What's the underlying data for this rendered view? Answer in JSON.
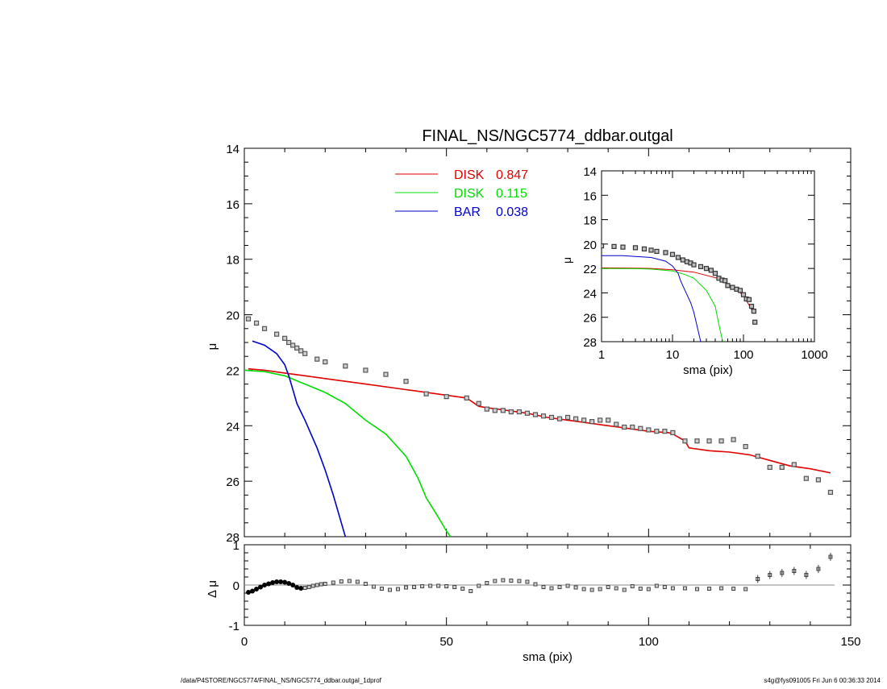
{
  "chart_data": [
    {
      "type": "line",
      "title": "FINAL_NS/NGC5774_ddbar.outgal",
      "xlabel": "",
      "ylabel": "μ",
      "xlim": [
        0,
        150
      ],
      "ylim": [
        28,
        14
      ],
      "y_inverted": true,
      "yticks": [
        "14",
        "16",
        "18",
        "20",
        "22",
        "24",
        "26",
        "28"
      ],
      "legend_placement": "top-center",
      "legend": [
        {
          "name": "DISK",
          "value": "0.847",
          "color": "#e00000"
        },
        {
          "name": "DISK",
          "value": "0.115",
          "color": "#00dd00"
        },
        {
          "name": "BAR",
          "value": "0.038",
          "color": "#0000cc"
        }
      ],
      "series": [
        {
          "name": "DISK",
          "color": "#e00000",
          "x": [
            1,
            5,
            10,
            15,
            20,
            30,
            40,
            50,
            55,
            58,
            60,
            65,
            70,
            75,
            80,
            85,
            90,
            95,
            100,
            105,
            106,
            109,
            110,
            115,
            120,
            125,
            130,
            135,
            140,
            145
          ],
          "y": [
            21.95,
            22.0,
            22.1,
            22.2,
            22.3,
            22.5,
            22.7,
            22.9,
            23.0,
            23.3,
            23.35,
            23.45,
            23.55,
            23.7,
            23.8,
            23.9,
            24.0,
            24.1,
            24.2,
            24.25,
            24.3,
            24.55,
            24.8,
            24.9,
            24.95,
            25.05,
            25.25,
            25.45,
            25.55,
            25.7
          ]
        },
        {
          "name": "DISK",
          "color": "#00dd00",
          "x": [
            0,
            5,
            10,
            15,
            20,
            25,
            30,
            35,
            40,
            43,
            45,
            48,
            50,
            51
          ],
          "y": [
            22.0,
            22.05,
            22.2,
            22.5,
            22.8,
            23.2,
            23.8,
            24.3,
            25.1,
            25.9,
            26.6,
            27.3,
            27.8,
            28.0
          ]
        },
        {
          "name": "BAR",
          "color": "#0000cc",
          "x": [
            2,
            5,
            8,
            10,
            11,
            12,
            13,
            14,
            15,
            18,
            20,
            22,
            24,
            25
          ],
          "y": [
            20.95,
            21.1,
            21.4,
            21.8,
            22.2,
            22.7,
            23.2,
            23.5,
            23.8,
            24.8,
            25.6,
            26.5,
            27.5,
            28.0
          ]
        },
        {
          "name": "",
          "color": "#555555",
          "marker": "square",
          "x": [
            1,
            3,
            5,
            8,
            10,
            11,
            12,
            13,
            14,
            15,
            18,
            20,
            25,
            30,
            35,
            40,
            45,
            50,
            55,
            58,
            60,
            62,
            64,
            66,
            68,
            70,
            72,
            74,
            76,
            78,
            80,
            82,
            84,
            86,
            88,
            90,
            92,
            94,
            96,
            98,
            100,
            102,
            104,
            106,
            109,
            112,
            115,
            118,
            121,
            124,
            127,
            130,
            133,
            136,
            139,
            142,
            145
          ],
          "y": [
            20.15,
            20.3,
            20.5,
            20.7,
            20.85,
            21.0,
            21.1,
            21.2,
            21.3,
            21.4,
            21.6,
            21.7,
            21.85,
            22.0,
            22.15,
            22.4,
            22.85,
            22.95,
            23.0,
            23.2,
            23.4,
            23.45,
            23.45,
            23.5,
            23.5,
            23.55,
            23.6,
            23.65,
            23.7,
            23.75,
            23.7,
            23.75,
            23.8,
            23.85,
            23.8,
            23.8,
            23.95,
            24.05,
            24.05,
            24.1,
            24.15,
            24.2,
            24.2,
            24.25,
            24.55,
            24.55,
            24.55,
            24.55,
            24.5,
            24.75,
            25.1,
            25.5,
            25.5,
            25.4,
            25.9,
            25.95,
            26.4
          ]
        }
      ]
    },
    {
      "type": "scatter",
      "xlabel": "sma (pix)",
      "ylabel": "Δ μ",
      "xlim": [
        0,
        150
      ],
      "ylim": [
        -1,
        1
      ],
      "xticks": [
        "0",
        "50",
        "100",
        "150"
      ],
      "yticks": [
        "1",
        "0",
        "-1"
      ],
      "series": [
        {
          "name": "",
          "color": "#000000",
          "x": [
            1,
            2,
            3,
            4,
            5,
            6,
            7,
            8,
            9,
            10,
            11,
            12,
            13,
            14,
            15,
            16,
            17,
            18,
            19,
            20,
            22,
            24,
            26,
            28,
            30,
            32,
            34,
            36,
            38,
            40,
            42,
            44,
            46,
            48,
            50,
            52,
            54,
            56,
            58,
            60,
            62,
            64,
            66,
            68,
            70,
            72,
            74,
            76,
            78,
            80,
            82,
            84,
            86,
            88,
            90,
            92,
            94,
            96,
            98,
            100,
            102,
            104,
            106,
            109,
            112,
            115,
            118,
            121,
            124,
            127,
            130,
            133,
            136,
            139,
            142,
            145
          ],
          "y": [
            -0.18,
            -0.15,
            -0.1,
            -0.05,
            0.0,
            0.03,
            0.06,
            0.08,
            0.08,
            0.07,
            0.04,
            0.0,
            -0.06,
            -0.08,
            -0.07,
            -0.05,
            -0.02,
            0.0,
            0.02,
            0.03,
            0.06,
            0.09,
            0.1,
            0.08,
            0.03,
            -0.04,
            -0.09,
            -0.12,
            -0.1,
            -0.06,
            -0.05,
            -0.03,
            -0.02,
            -0.02,
            -0.03,
            -0.05,
            -0.09,
            -0.15,
            -0.02,
            0.05,
            0.1,
            0.12,
            0.11,
            0.1,
            0.08,
            0.02,
            -0.05,
            -0.08,
            -0.05,
            -0.02,
            -0.06,
            -0.1,
            -0.12,
            -0.1,
            -0.05,
            -0.08,
            -0.12,
            -0.03,
            -0.09,
            -0.1,
            -0.02,
            -0.05,
            -0.08,
            -0.08,
            -0.1,
            -0.09,
            -0.08,
            -0.09,
            -0.1,
            0.15,
            0.25,
            0.3,
            0.35,
            0.25,
            0.4,
            0.7
          ]
        }
      ]
    },
    {
      "type": "line",
      "xlabel": "sma (pix)",
      "ylabel": "μ",
      "x_scale": "log",
      "xlim": [
        1,
        1000
      ],
      "ylim": [
        28,
        14
      ],
      "y_inverted": true,
      "xticks": [
        "1",
        "10",
        "100",
        "1000"
      ],
      "yticks": [
        "14",
        "16",
        "18",
        "20",
        "22",
        "24",
        "26",
        "28"
      ],
      "series": [
        {
          "name": "DISK",
          "color": "#e00000",
          "x": [
            1,
            3,
            5,
            10,
            20,
            50,
            100,
            140
          ],
          "y": [
            21.95,
            21.97,
            22.0,
            22.1,
            22.3,
            22.9,
            24.2,
            25.7
          ]
        },
        {
          "name": "DISK",
          "color": "#00dd00",
          "x": [
            1,
            3,
            5,
            10,
            15,
            20,
            30,
            40,
            45,
            51
          ],
          "y": [
            22.0,
            22.02,
            22.05,
            22.2,
            22.5,
            22.8,
            23.8,
            25.1,
            26.6,
            28.0
          ]
        },
        {
          "name": "BAR",
          "color": "#0000cc",
          "x": [
            1,
            2,
            5,
            8,
            10,
            12,
            13,
            15,
            18,
            20,
            25
          ],
          "y": [
            20.95,
            20.95,
            21.1,
            21.4,
            21.8,
            22.4,
            23.0,
            23.8,
            24.8,
            25.6,
            28.0
          ]
        },
        {
          "name": "",
          "color": "#555555",
          "marker": "square",
          "x": [
            1,
            1.5,
            2,
            3,
            4,
            5,
            6,
            8,
            10,
            12,
            14,
            16,
            18,
            20,
            25,
            30,
            35,
            40,
            45,
            50,
            55,
            60,
            70,
            80,
            90,
            100,
            110,
            120,
            130,
            140,
            145
          ],
          "y": [
            20.15,
            20.2,
            20.25,
            20.3,
            20.4,
            20.5,
            20.6,
            20.7,
            20.85,
            21.1,
            21.3,
            21.45,
            21.55,
            21.7,
            21.85,
            22.0,
            22.15,
            22.4,
            22.8,
            22.95,
            23.0,
            23.4,
            23.55,
            23.7,
            23.8,
            24.15,
            24.5,
            24.55,
            25.1,
            25.5,
            26.4
          ]
        }
      ]
    }
  ],
  "footer": {
    "left": "/data/P4STORE/NGC5774/FINAL_NS/NGC5774_ddbar.outgal_1dprof",
    "right": "s4g@fys091005  Fri Jun  6 00:36:33 2014"
  }
}
